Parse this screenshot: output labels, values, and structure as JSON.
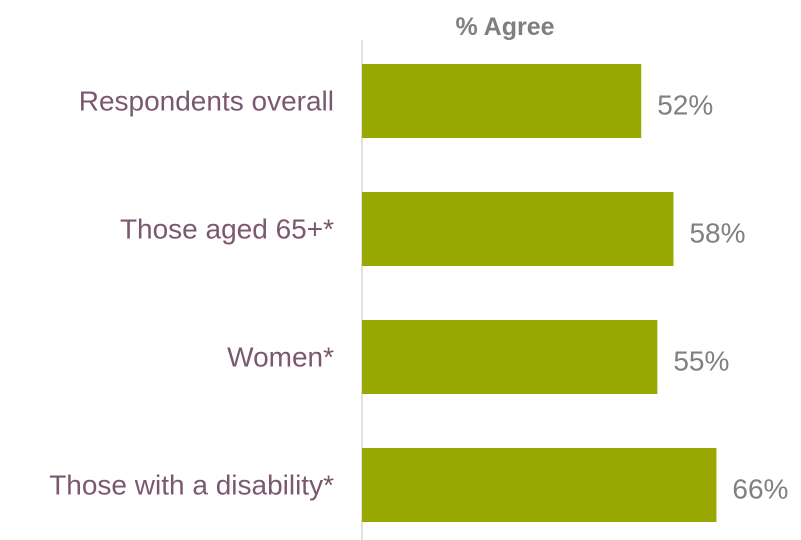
{
  "chart_data": {
    "type": "bar",
    "orientation": "horizontal",
    "title": "% Agree",
    "categories": [
      "Respondents overall",
      "Those aged 65+*",
      "Women*",
      "Those with a disability*"
    ],
    "values": [
      52,
      58,
      55,
      66
    ],
    "value_labels": [
      "52%",
      "58%",
      "55%",
      "66%"
    ],
    "xlim": [
      0,
      100
    ],
    "unit": "%",
    "grid": false,
    "legend": "none",
    "colors": {
      "bar": "#99a800",
      "category_label": "#7b5870",
      "value_label": "#808080",
      "axis_line": "#d9d9d9"
    }
  }
}
